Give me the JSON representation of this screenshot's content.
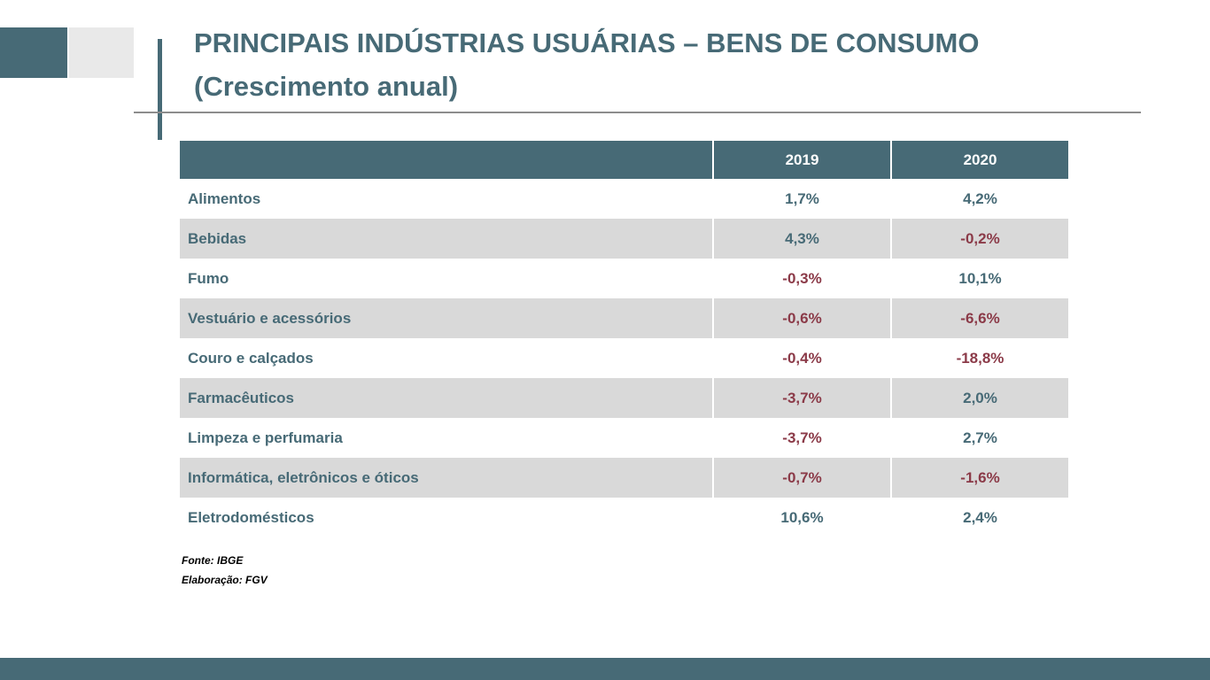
{
  "title": {
    "line1": "PRINCIPAIS INDÚSTRIAS USUÁRIAS – BENS DE CONSUMO",
    "line2": "(Crescimento anual)"
  },
  "table": {
    "columns": [
      "",
      "2019",
      "2020"
    ],
    "rows": [
      {
        "label": "Alimentos",
        "y2019": "1,7%",
        "y2020": "4,2%"
      },
      {
        "label": "Bebidas",
        "y2019": "4,3%",
        "y2020": "-0,2%"
      },
      {
        "label": "Fumo",
        "y2019": "-0,3%",
        "y2020": "10,1%"
      },
      {
        "label": "Vestuário e acessórios",
        "y2019": "-0,6%",
        "y2020": "-6,6%"
      },
      {
        "label": "Couro e calçados",
        "y2019": "-0,4%",
        "y2020": "-18,8%"
      },
      {
        "label": "Farmacêuticos",
        "y2019": "-3,7%",
        "y2020": "2,0%"
      },
      {
        "label": "Limpeza e perfumaria",
        "y2019": "-3,7%",
        "y2020": "2,7%"
      },
      {
        "label": "Informática, eletrônicos e óticos",
        "y2019": "-0,7%",
        "y2020": "-1,6%"
      },
      {
        "label": "Eletrodomésticos",
        "y2019": "10,6%",
        "y2020": "2,4%"
      }
    ]
  },
  "notes": {
    "source": "Fonte: IBGE",
    "elaboration": "Elaboração: FGV"
  },
  "colors": {
    "accent": "#476a76",
    "negative": "#8b3a48",
    "row_alt": "#d9d9d9"
  }
}
